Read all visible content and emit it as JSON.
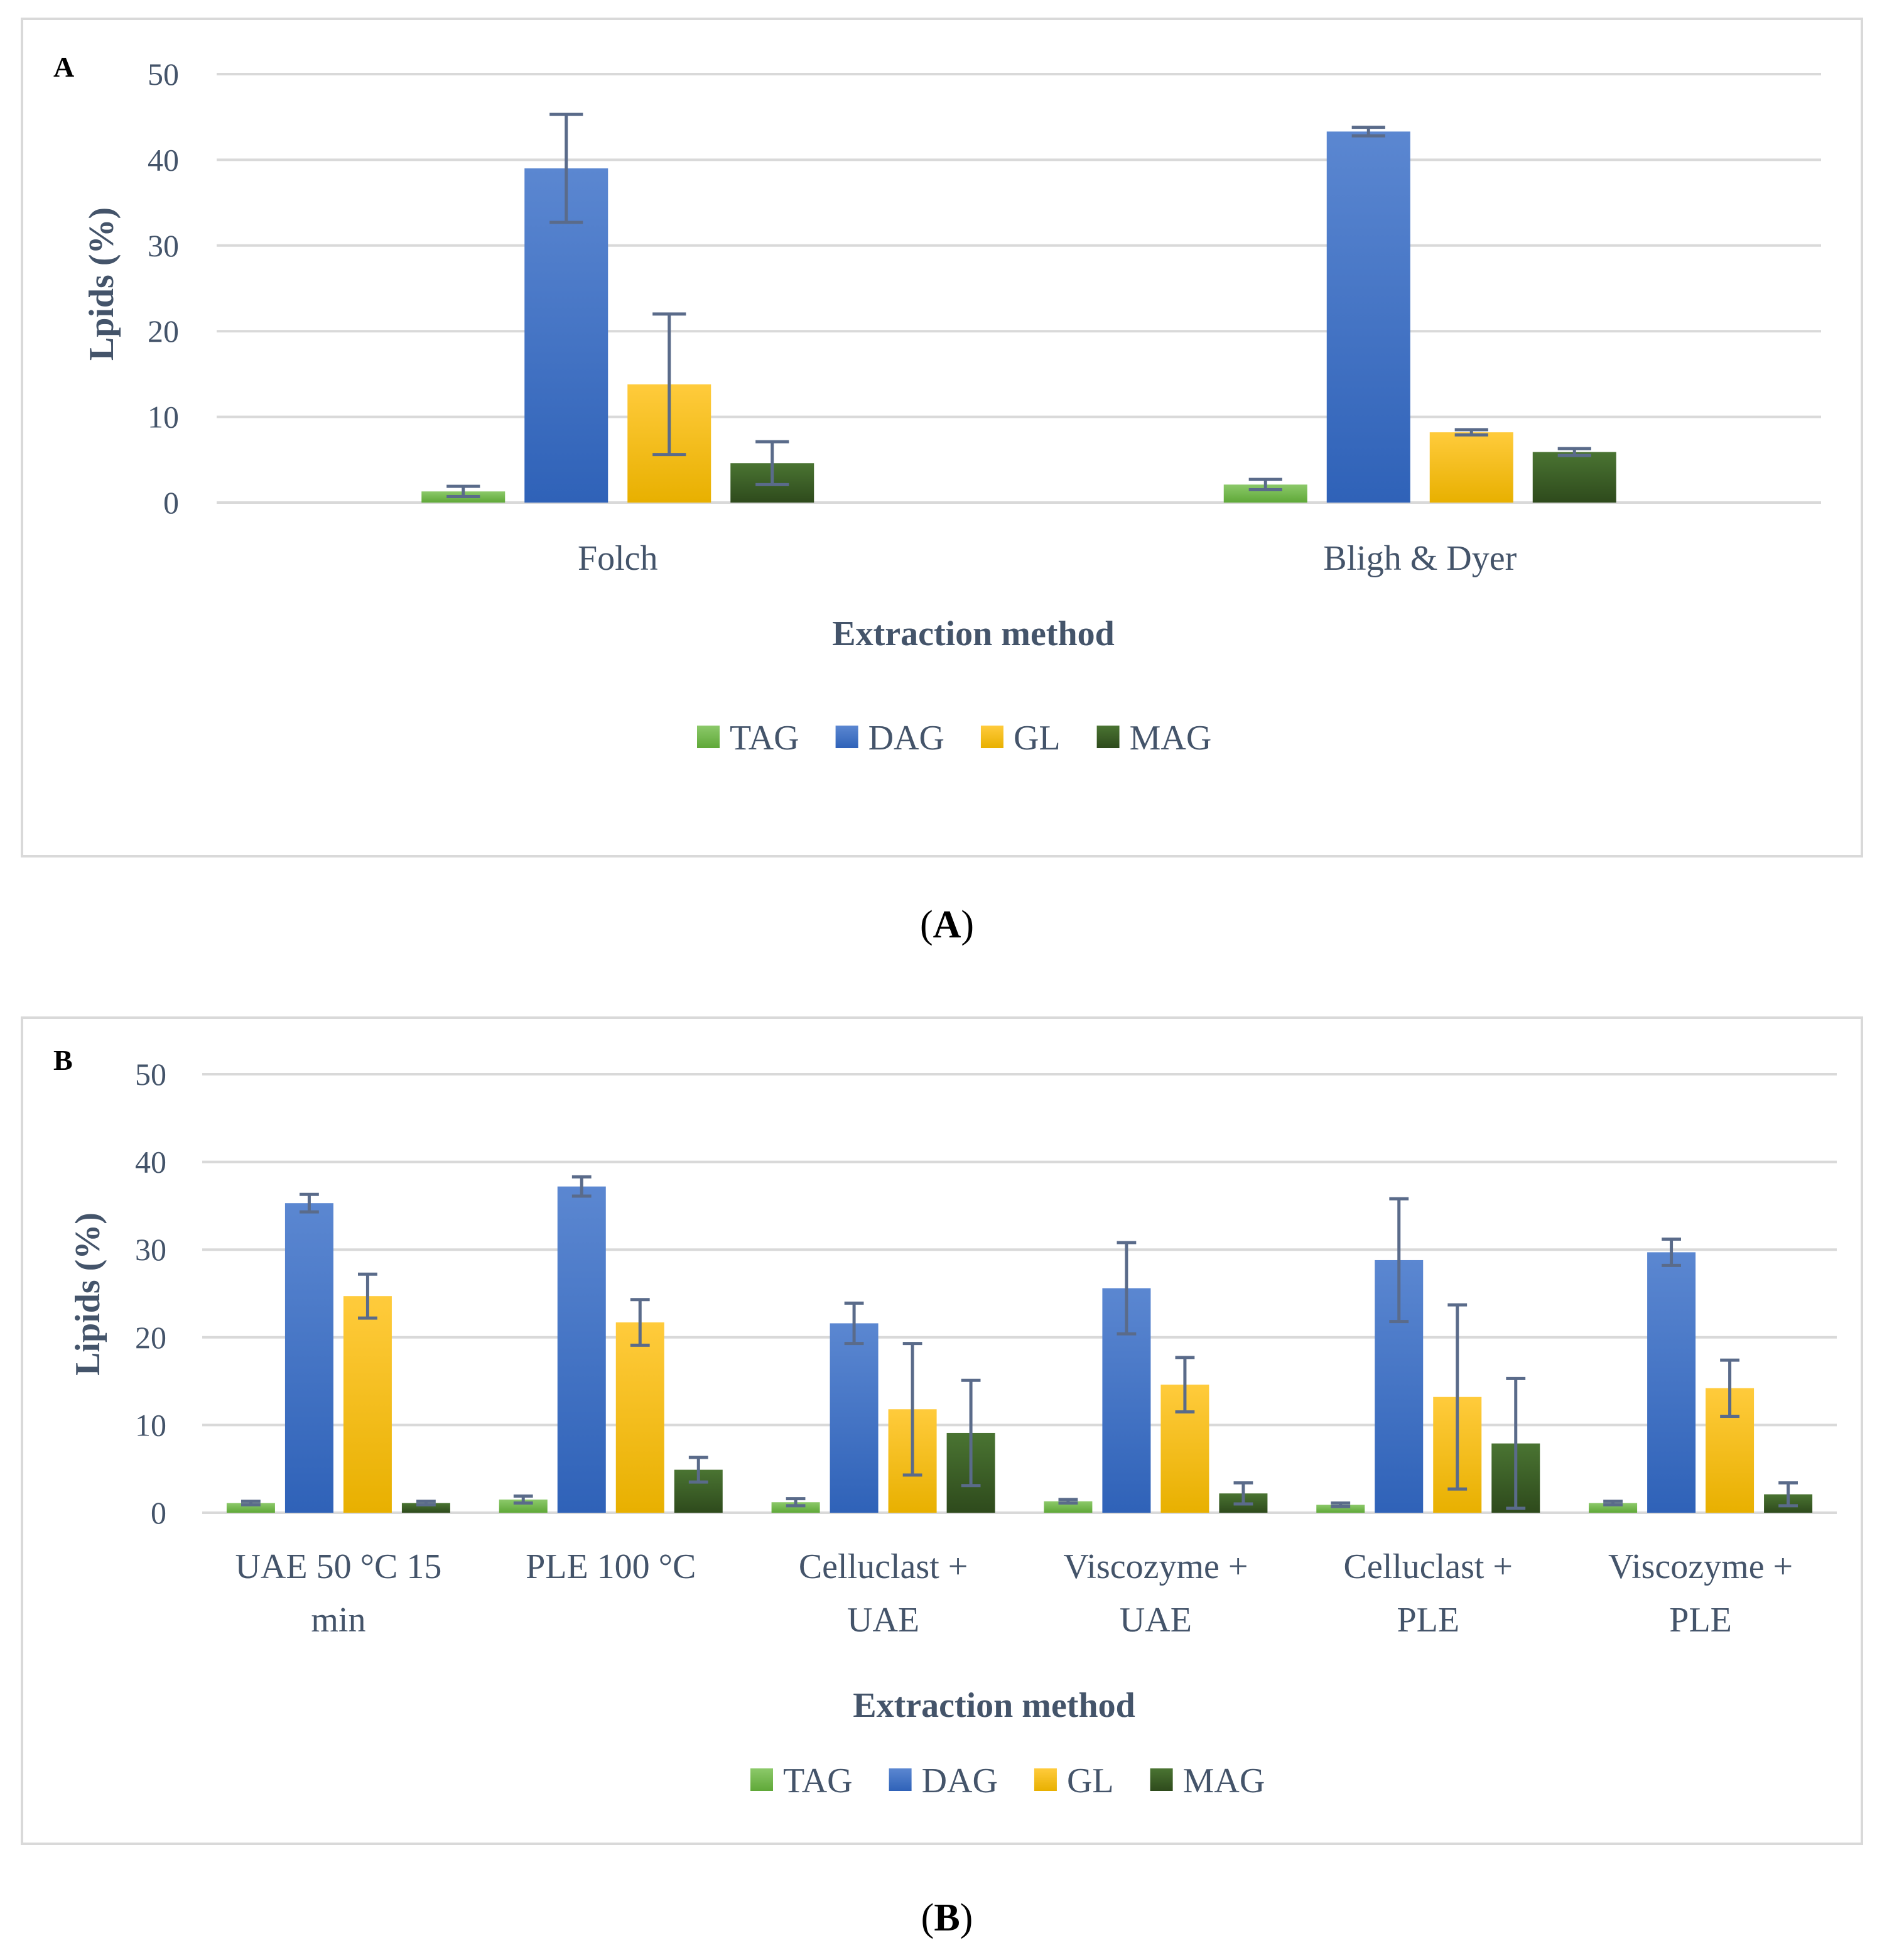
{
  "colors": {
    "TAG": "#70ad47",
    "DAG": "#4472c4",
    "GL": "#ffc000",
    "MAG": "#375623",
    "grid": "#d9d9d9",
    "border": "#d9d9d9",
    "error_bar": "#5a6b8a",
    "text": "#44546a"
  },
  "chart_data": [
    {
      "type": "bar",
      "panel_label": "A",
      "caption_letter": "A",
      "categories": [
        "Folch",
        "Bligh & Dyer"
      ],
      "series": [
        {
          "name": "TAG",
          "values": [
            1.3,
            2.1
          ],
          "errors": [
            0.6,
            0.6
          ]
        },
        {
          "name": "DAG",
          "values": [
            39.0,
            43.3
          ],
          "errors": [
            6.3,
            0.5
          ]
        },
        {
          "name": "GL",
          "values": [
            13.8,
            8.2
          ],
          "errors": [
            8.2,
            0.3
          ]
        },
        {
          "name": "MAG",
          "values": [
            4.6,
            5.9
          ],
          "errors": [
            2.5,
            0.4
          ]
        }
      ],
      "ylabel": "Lpids (%)",
      "xlabel": "Extraction method",
      "ylim": [
        0,
        50
      ],
      "yticks": [
        "0",
        "10",
        "20",
        "30",
        "40",
        "50"
      ],
      "grid": true,
      "legend": "bottom-center"
    },
    {
      "type": "bar",
      "panel_label": "B",
      "caption_letter": "B",
      "categories": [
        [
          "UAE 50 °C 15",
          "min"
        ],
        [
          "PLE 100 °C"
        ],
        [
          "Celluclast +",
          "UAE"
        ],
        [
          "Viscozyme +",
          "UAE"
        ],
        [
          "Celluclast +",
          "PLE"
        ],
        [
          "Viscozyme +",
          "PLE"
        ]
      ],
      "series": [
        {
          "name": "TAG",
          "values": [
            1.1,
            1.5,
            1.2,
            1.3,
            0.9,
            1.1
          ],
          "errors": [
            0.2,
            0.4,
            0.4,
            0.2,
            0.2,
            0.2
          ]
        },
        {
          "name": "DAG",
          "values": [
            35.3,
            37.2,
            21.6,
            25.6,
            28.8,
            29.7
          ],
          "errors": [
            1.0,
            1.1,
            2.3,
            5.2,
            7.0,
            1.5
          ]
        },
        {
          "name": "GL",
          "values": [
            24.7,
            21.7,
            11.8,
            14.6,
            13.2,
            14.2
          ],
          "errors": [
            2.5,
            2.6,
            7.5,
            3.1,
            10.5,
            3.2
          ]
        },
        {
          "name": "MAG",
          "values": [
            1.1,
            4.9,
            9.1,
            2.2,
            7.9,
            2.1
          ],
          "errors": [
            0.2,
            1.4,
            6.0,
            1.2,
            7.4,
            1.3
          ]
        }
      ],
      "ylabel": "Lipids (%)",
      "xlabel": "Extraction method",
      "ylim": [
        0,
        50
      ],
      "yticks": [
        "0",
        "10",
        "20",
        "30",
        "40",
        "50"
      ],
      "grid": true,
      "legend": "bottom-center"
    }
  ]
}
